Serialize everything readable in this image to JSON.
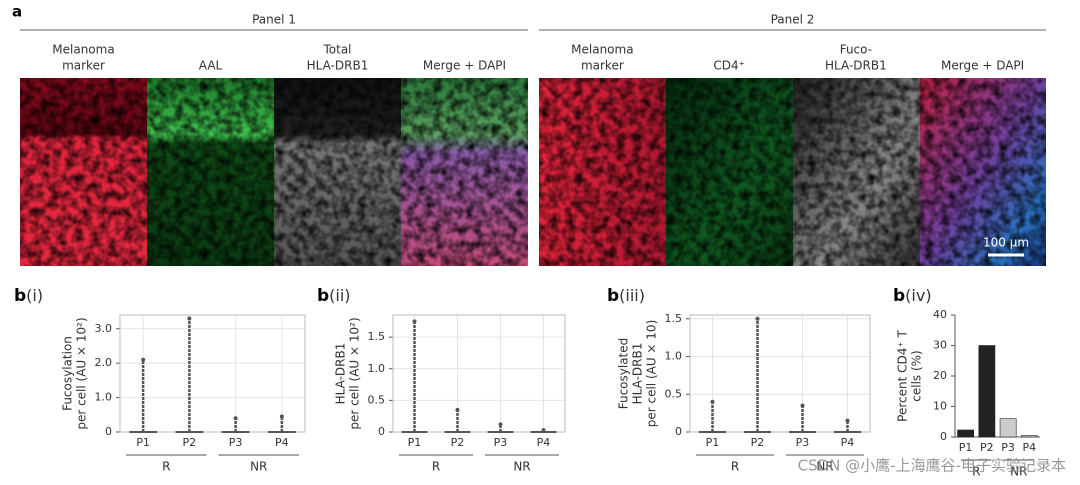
{
  "panel_a": {
    "label": "a",
    "panels": [
      {
        "title": "Panel 1",
        "columns": [
          [
            "Melanoma",
            "marker"
          ],
          [
            "AAL"
          ],
          [
            "Total",
            "HLA-DRB1"
          ],
          [
            "Merge + DAPI"
          ]
        ]
      },
      {
        "title": "Panel 2",
        "columns": [
          [
            "Melanoma",
            "marker"
          ],
          [
            "CD4⁺"
          ],
          [
            "Fuco-",
            "HLA-DRB1"
          ],
          [
            "Merge + DAPI"
          ]
        ]
      }
    ],
    "scale_bar": "100 µm"
  },
  "chart_data": [
    {
      "type": "strip",
      "panel": "b",
      "sub": "(i)",
      "ylabel": [
        "Fucosylation",
        "per cell (AU × 10²)"
      ],
      "categories": [
        "P1",
        "P2",
        "P3",
        "P4"
      ],
      "values": [
        2.1,
        3.3,
        0.4,
        0.45
      ],
      "groups": [
        "R",
        "NR"
      ],
      "ylim": [
        0,
        3.4
      ],
      "yticks": [
        0,
        {
          "value": 1,
          "label": "1.0"
        },
        {
          "value": 2,
          "label": "2.0"
        },
        {
          "value": 3,
          "label": "3.0"
        }
      ],
      "grid": true,
      "color": "#555555"
    },
    {
      "type": "strip",
      "panel": "b",
      "sub": "(ii)",
      "ylabel": [
        "HLA-DRB1",
        "per cell (AU × 10²)"
      ],
      "categories": [
        "P1",
        "P2",
        "P3",
        "P4"
      ],
      "values": [
        1.75,
        0.35,
        0.12,
        0.03
      ],
      "groups": [
        "R",
        "NR"
      ],
      "ylim": [
        0,
        1.85
      ],
      "yticks": [
        0,
        0.5,
        {
          "value": 1,
          "label": "1.0"
        },
        1.5
      ],
      "grid": true,
      "color": "#555555"
    },
    {
      "type": "strip",
      "panel": "b",
      "sub": "(iii)",
      "ylabel": [
        "Fucosylated",
        "HLA-DRB1",
        "per cell (AU × 10)"
      ],
      "categories": [
        "P1",
        "P2",
        "P3",
        "P4"
      ],
      "values": [
        0.4,
        1.5,
        0.35,
        0.15
      ],
      "groups": [
        "R",
        "NR"
      ],
      "ylim": [
        0,
        1.55
      ],
      "yticks": [
        0,
        0.5,
        {
          "value": 1,
          "label": "1.0"
        },
        1.5
      ],
      "grid": true,
      "color": "#555555"
    },
    {
      "type": "bar",
      "panel": "b",
      "sub": "(iv)",
      "ylabel": [
        "Percent CD4⁺ T",
        "cells (%)"
      ],
      "categories": [
        "P1",
        "P2",
        "P3",
        "P4"
      ],
      "values": [
        2.3,
        30,
        6,
        0.5
      ],
      "groups": [
        "R",
        "NR"
      ],
      "ylim": [
        0,
        40
      ],
      "yticks": [
        0,
        10,
        20,
        30,
        40
      ],
      "grid": false,
      "colors": [
        "#222222",
        "#222222",
        "#cccccc",
        "#cccccc"
      ]
    }
  ],
  "watermark": "CSDN @小鹰-上海鹰谷-电子实验记录本"
}
